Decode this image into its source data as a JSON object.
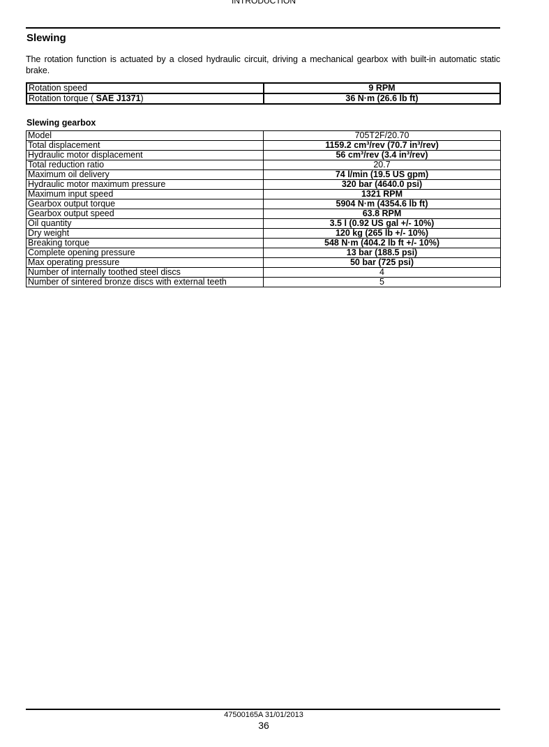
{
  "header": {
    "section": "INTRODUCTION"
  },
  "title": "Slewing",
  "intro": "The rotation function is actuated by a closed hydraulic circuit, driving a mechanical gearbox with built-in automatic static brake.",
  "rotation_table": [
    {
      "label": "Rotation speed",
      "value": "9 RPM"
    },
    {
      "label": "Rotation torque ( SAE J1371)",
      "value": "36 N·m (26.6 lb ft)"
    }
  ],
  "gearbox": {
    "title": "Slewing gearbox",
    "rows": [
      {
        "label": "Model",
        "value": "705T2F/20.70",
        "bold": false
      },
      {
        "label": "Total displacement",
        "value": "1159.2 cm³/rev (70.7 in³/rev)",
        "bold": true
      },
      {
        "label": "Hydraulic motor displacement",
        "value": "56 cm³/rev (3.4 in³/rev)",
        "bold": true
      },
      {
        "label": "Total reduction ratio",
        "value": "20.7",
        "bold": false
      },
      {
        "label": "Maximum oil delivery",
        "value": "74 l/min (19.5 US gpm)",
        "bold": true
      },
      {
        "label": "Hydraulic motor maximum pressure",
        "value": "320 bar (4640.0 psi)",
        "bold": true
      },
      {
        "label": "Maximum input speed",
        "value": "1321 RPM",
        "bold": true
      },
      {
        "label": "Gearbox output torque",
        "value": "5904 N·m (4354.6 lb ft)",
        "bold": true
      },
      {
        "label": "Gearbox output speed",
        "value": "63.8 RPM",
        "bold": true
      },
      {
        "label": "Oil quantity",
        "value": "3.5 l (0.92 US gal +/- 10%)",
        "bold": true
      },
      {
        "label": "Dry weight",
        "value": "120 kg (265 lb +/- 10%)",
        "bold": true
      },
      {
        "label": "Breaking torque",
        "value": "548 N·m (404.2 lb ft +/- 10%)",
        "bold": true
      },
      {
        "label": "Complete opening pressure",
        "value": "13 bar (188.5 psi)",
        "bold": true
      },
      {
        "label": "Max operating pressure",
        "value": "50 bar (725 psi)",
        "bold": true
      },
      {
        "label": "Number of internally toothed steel discs",
        "value": "4",
        "bold": false
      },
      {
        "label": "Number of sintered bronze discs with external teeth",
        "value": "5",
        "bold": false
      }
    ]
  },
  "footer": {
    "doc_id": "47500165A 31/01/2013",
    "page": "36"
  }
}
